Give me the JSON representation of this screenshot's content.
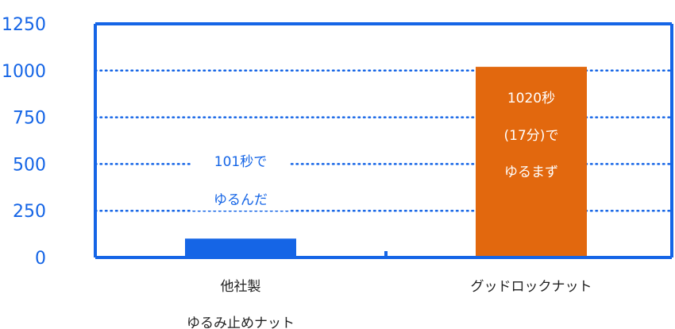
{
  "chart_data": {
    "type": "bar",
    "categories": [
      [
        "他社製",
        "ゆるみ止めナット"
      ],
      [
        "グッドロックナット"
      ]
    ],
    "values": [
      101,
      1020
    ],
    "bar_colors": [
      "#1565e6",
      "#e2680e"
    ],
    "ylim": [
      0,
      1250
    ],
    "yticks": [
      0,
      250,
      500,
      750,
      1000,
      1250
    ],
    "grid": "dotted",
    "annotations": [
      [
        "101秒で",
        "ゆるんだ"
      ],
      [
        "1020秒",
        "(17分)で",
        "ゆるまず"
      ]
    ]
  },
  "colors": {
    "axis": "#1565e6",
    "tick_text": "#1565e6",
    "grid": "#1565e6",
    "annotation_on_white": "#1565e6",
    "annotation_on_bar": "#ffffff"
  }
}
